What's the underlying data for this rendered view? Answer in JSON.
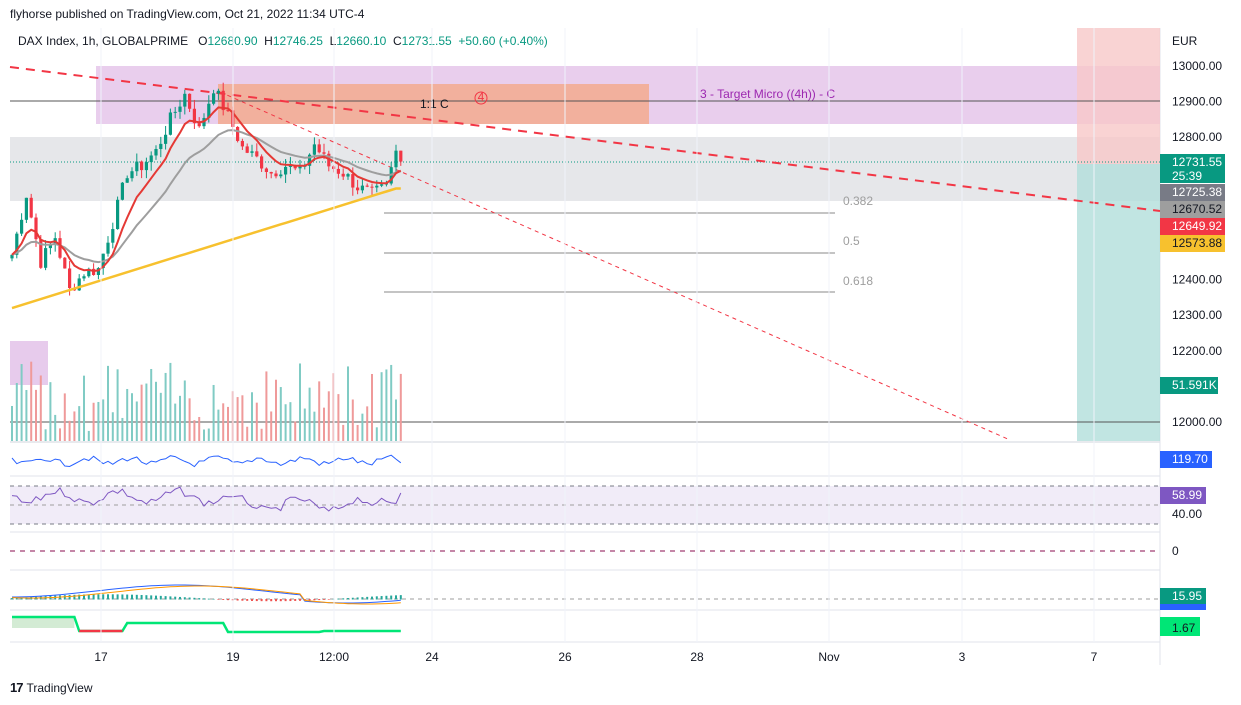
{
  "header": {
    "published": "flyhorse published on TradingView.com, Oct 21, 2022 11:34 UTC-4",
    "symbol": "DAX Index, 1h, GLOBALPRIME",
    "o_label": "O",
    "o": "12680.90",
    "h_label": "H",
    "h": "12746.25",
    "l_label": "L",
    "l": "12660.10",
    "c_label": "C",
    "c": "12731.55",
    "change": "+50.60 (+0.40%)"
  },
  "currency": "EUR",
  "brand": "TradingView",
  "colors": {
    "up": "#089981",
    "down": "#f23645",
    "ema_red": "#e53935",
    "ma_gray": "#9e9e9e",
    "ma_yellow": "#f7c12e",
    "target_zone": "#e1bee7",
    "orange_zone": "#f4a582",
    "gray_zone": "#e0e0e0",
    "trend": "#f23645",
    "rsi": "#7e57c2",
    "cci": "#2962ff"
  },
  "chart_data": {
    "type": "candlestick",
    "symbol": "DAX Index",
    "interval": "1h",
    "x_ticks": [
      "17",
      "19",
      "12:00",
      "24",
      "26",
      "28",
      "Nov",
      "3",
      "7"
    ],
    "y_ticks": [
      "13000.00",
      "12900.00",
      "12800.00",
      "12400.00",
      "12300.00",
      "12200.00",
      "12000.00"
    ],
    "ylim": [
      11950,
      13050
    ],
    "price_path": [
      [
        0,
        12470
      ],
      [
        3,
        12640
      ],
      [
        6,
        12450
      ],
      [
        9,
        12520
      ],
      [
        12,
        12370
      ],
      [
        15,
        12420
      ],
      [
        18,
        12430
      ],
      [
        21,
        12560
      ],
      [
        24,
        12700
      ],
      [
        27,
        12720
      ],
      [
        30,
        12760
      ],
      [
        33,
        12850
      ],
      [
        36,
        12920
      ],
      [
        39,
        12820
      ],
      [
        42,
        12940
      ],
      [
        45,
        12860
      ],
      [
        48,
        12770
      ],
      [
        51,
        12740
      ],
      [
        54,
        12700
      ],
      [
        57,
        12720
      ],
      [
        60,
        12700
      ],
      [
        63,
        12780
      ],
      [
        66,
        12720
      ],
      [
        69,
        12700
      ],
      [
        72,
        12660
      ],
      [
        75,
        12640
      ],
      [
        78,
        12660
      ],
      [
        80,
        12760
      ],
      [
        81,
        12731.55
      ]
    ],
    "annotations": {
      "target_label": "3 - Target Micro ((4h)) - C",
      "ratio_label": "1:1 C",
      "wave_label": "4",
      "fib_382": "0.382",
      "fib_5": "0.5",
      "fib_618": "0.618"
    },
    "price_tags": [
      {
        "text": "12731.55",
        "color": "#089981"
      },
      {
        "text": "25:39",
        "color": "#089981"
      },
      {
        "text": "12725.38",
        "color": "#787b86"
      },
      {
        "text": "12670.52",
        "color": "#9e9e9e"
      },
      {
        "text": "12649.92",
        "color": "#f23645"
      },
      {
        "text": "12573.88",
        "color": "#f7c12e"
      },
      {
        "text": "51.591K",
        "color": "#089981"
      }
    ],
    "indicators": {
      "cci_value": "119.70",
      "rsi_value": "58.99",
      "rsi_level": "40.00",
      "zero_level": "0",
      "macd_value": "15.95",
      "osc_value": "1.67"
    }
  }
}
